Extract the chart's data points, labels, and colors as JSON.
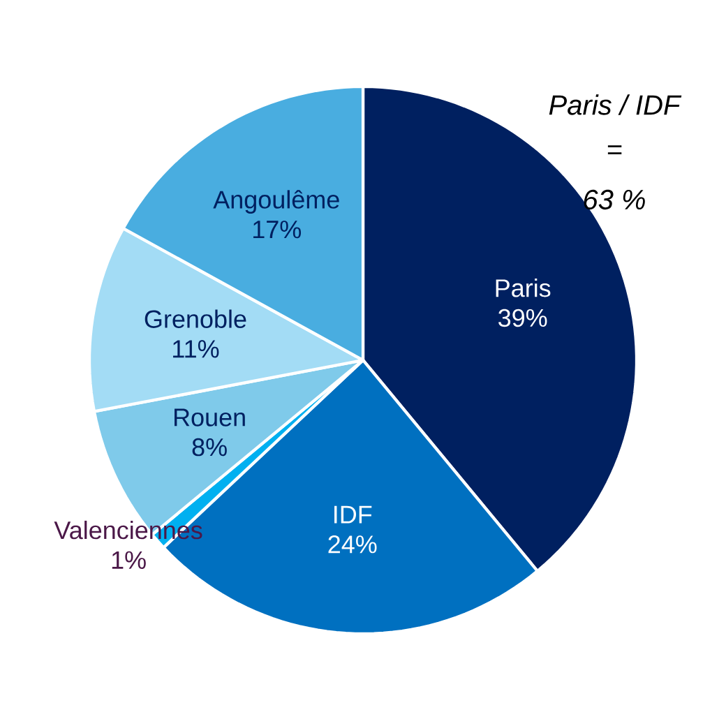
{
  "chart_data": {
    "type": "pie",
    "categories": [
      "Paris",
      "IDF",
      "Valenciennes",
      "Rouen",
      "Grenoble",
      "Angoulême"
    ],
    "values": [
      39,
      24,
      1,
      8,
      11,
      17
    ],
    "value_labels": [
      "39%",
      "24%",
      "1%",
      "8%",
      "11%",
      "17%"
    ],
    "colors": [
      "#002060",
      "#0070c0",
      "#00b0f0",
      "#7fcaea",
      "#a3dcf5",
      "#49ade0"
    ],
    "annotations": [
      "Paris / IDF",
      "=",
      "63 %"
    ]
  }
}
